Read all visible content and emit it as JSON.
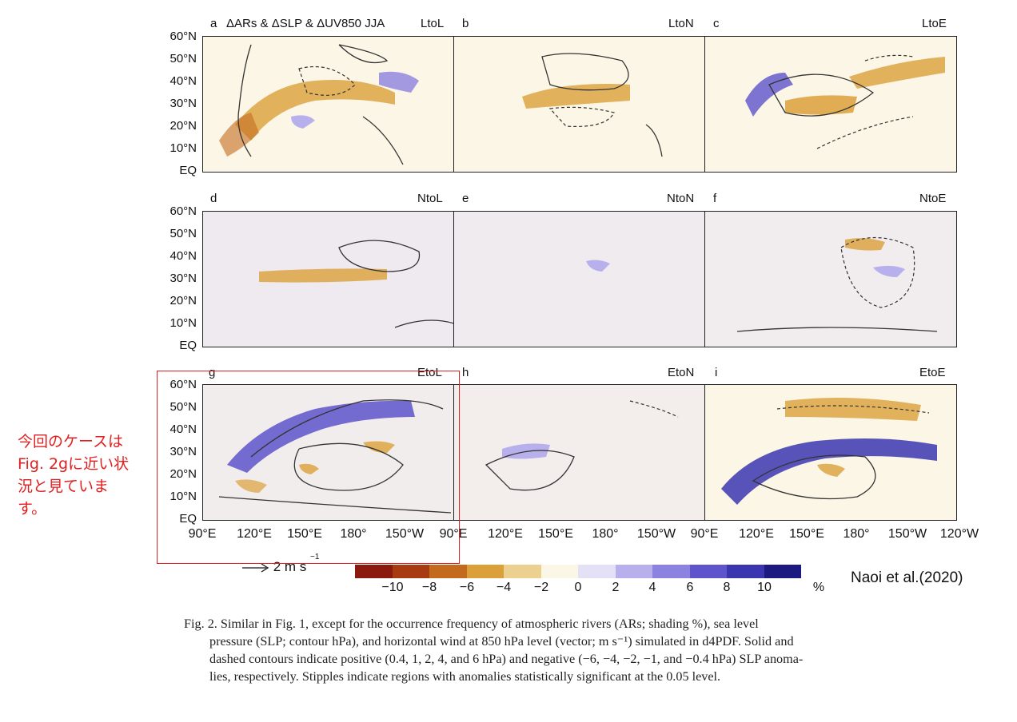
{
  "figure": {
    "panels": [
      {
        "letter": "a",
        "title": "ΔARs & ΔSLP & ΔUV850  JJA",
        "case": "LtoL"
      },
      {
        "letter": "b",
        "title": "",
        "case": "LtoN"
      },
      {
        "letter": "c",
        "title": "",
        "case": "LtoE"
      },
      {
        "letter": "d",
        "title": "",
        "case": "NtoL"
      },
      {
        "letter": "e",
        "title": "",
        "case": "NtoN"
      },
      {
        "letter": "f",
        "title": "",
        "case": "NtoE"
      },
      {
        "letter": "g",
        "title": "",
        "case": "EtoL"
      },
      {
        "letter": "h",
        "title": "",
        "case": "EtoN"
      },
      {
        "letter": "i",
        "title": "",
        "case": "EtoE"
      }
    ],
    "lat_labels": [
      "60°N",
      "50°N",
      "40°N",
      "30°N",
      "20°N",
      "10°N",
      "EQ"
    ],
    "lon_labels": [
      "90°E",
      "120°E",
      "150°E",
      "180°",
      "150°W",
      "90°E",
      "120°E",
      "150°E",
      "180°",
      "150°W",
      "90°E",
      "120°E",
      "150°E",
      "180°",
      "150°W",
      "120°W"
    ],
    "vector_scale": {
      "label": "2 m s",
      "exponent": "−1"
    },
    "colorbar": {
      "ticks": [
        "−10",
        "−8",
        "−6",
        "−4",
        "−2",
        "0",
        "2",
        "4",
        "6",
        "8",
        "10"
      ],
      "unit": "%",
      "colors": [
        "#8b1a0e",
        "#a83a12",
        "#c46a1c",
        "#dca03a",
        "#ecd090",
        "#fbf6e6",
        "#e4e0f6",
        "#b8b0ec",
        "#8c82e0",
        "#5e54cc",
        "#3a36b0",
        "#1c1a80"
      ]
    },
    "citation": "Naoi et al.(2020)"
  },
  "annotation": {
    "text": "今回のケースはFig. 2gに近い状況と見ています。"
  },
  "caption": {
    "line1": "Fig. 2.   Similar in Fig. 1, except for the occurrence frequency of atmospheric rivers (ARs; shading %), sea level",
    "line2": "pressure (SLP; contour hPa), and horizontal wind at 850 hPa level (vector; m s⁻¹) simulated in d4PDF. Solid and",
    "line3": "dashed contours indicate positive (0.4, 1, 2, 4, and 6 hPa) and negative (−6, −4, −2, −1, and −0.4 hPa) SLP anoma-",
    "line4": "lies, respectively. Stipples indicate regions with anomalies statistically significant at the 0.05 level."
  }
}
